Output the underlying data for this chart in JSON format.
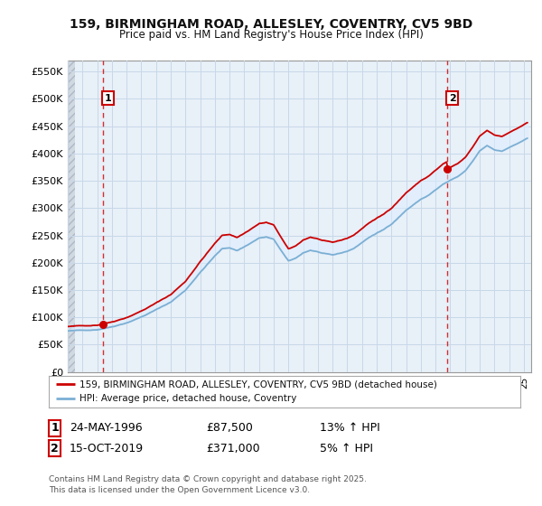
{
  "title": "159, BIRMINGHAM ROAD, ALLESLEY, COVENTRY, CV5 9BD",
  "subtitle": "Price paid vs. HM Land Registry's House Price Index (HPI)",
  "ylabel_ticks": [
    "£0",
    "£50K",
    "£100K",
    "£150K",
    "£200K",
    "£250K",
    "£300K",
    "£350K",
    "£400K",
    "£450K",
    "£500K",
    "£550K"
  ],
  "ytick_values": [
    0,
    50000,
    100000,
    150000,
    200000,
    250000,
    300000,
    350000,
    400000,
    450000,
    500000,
    550000
  ],
  "ylim": [
    0,
    570000
  ],
  "sale1_year": 1996.38,
  "sale1_price": 87500,
  "sale1_date": "24-MAY-1996",
  "sale1_hpi": "13% ↑ HPI",
  "sale2_year": 2019.79,
  "sale2_price": 371000,
  "sale2_date": "15-OCT-2019",
  "sale2_hpi": "5% ↑ HPI",
  "legend_line1": "159, BIRMINGHAM ROAD, ALLESLEY, COVENTRY, CV5 9BD (detached house)",
  "legend_line2": "HPI: Average price, detached house, Coventry",
  "footer": "Contains HM Land Registry data © Crown copyright and database right 2025.\nThis data is licensed under the Open Government Licence v3.0.",
  "property_color": "#cc0000",
  "hpi_color": "#7bafd4",
  "hpi_fill_color": "#ddeeff",
  "vline_color": "#cc0000",
  "bg_color": "#ffffff",
  "plot_bg_color": "#e8f0f8",
  "grid_color": "#c8d8e8",
  "hatch_area_color": "#d0d8e0",
  "box_color": "#cc0000",
  "xmin": 1994.0,
  "xmax": 2025.5
}
